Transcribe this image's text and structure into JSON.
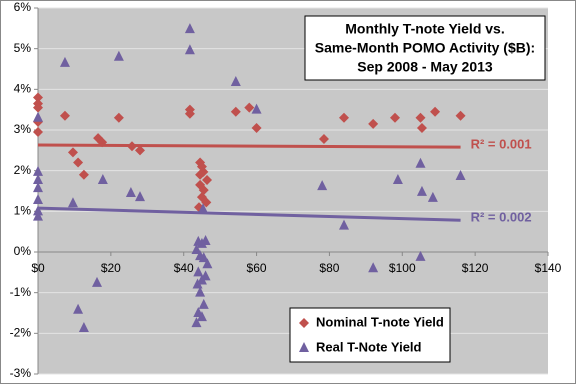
{
  "chart_data": {
    "type": "scatter",
    "title": [
      "Monthly T-note Yield vs.",
      "Same-Month POMO Activity ($B):",
      "Sep 2008 - May 2013"
    ],
    "xlim": [
      0,
      140
    ],
    "ylim": [
      -3,
      6
    ],
    "xticks": [
      {
        "value": 0,
        "label": "$0"
      },
      {
        "value": 20,
        "label": "$20"
      },
      {
        "value": 40,
        "label": "$40"
      },
      {
        "value": 60,
        "label": "$60"
      },
      {
        "value": 80,
        "label": "$80"
      },
      {
        "value": 100,
        "label": "$100"
      },
      {
        "value": 120,
        "label": "$120"
      },
      {
        "value": 140,
        "label": "$140"
      }
    ],
    "yticks": [
      {
        "value": -3,
        "label": "-3%"
      },
      {
        "value": -2,
        "label": "-2%"
      },
      {
        "value": -1,
        "label": "-1%"
      },
      {
        "value": 0,
        "label": "0%"
      },
      {
        "value": 1,
        "label": "1%"
      },
      {
        "value": 2,
        "label": "2%"
      },
      {
        "value": 3,
        "label": "3%"
      },
      {
        "value": 4,
        "label": "4%"
      },
      {
        "value": 5,
        "label": "5%"
      },
      {
        "value": 6,
        "label": "6%"
      }
    ],
    "grid": true,
    "legend": "bottom-right",
    "series": [
      {
        "name": "Nominal T-note Yield",
        "color": "#c0504d",
        "marker": "diamond",
        "x": [
          0,
          0,
          0,
          0,
          0,
          7.4,
          9.6,
          11,
          12.6,
          16.5,
          17.6,
          22.2,
          25.8,
          28,
          41.7,
          41.7,
          44.5,
          45,
          44.5,
          45.4,
          46.4,
          44.5,
          45.5,
          45,
          46.2,
          44.2,
          54.3,
          58,
          60,
          78.5,
          84,
          92,
          98,
          105,
          105.4,
          109,
          116
        ],
        "y": [
          3.8,
          3.65,
          3.55,
          3.2,
          2.95,
          3.35,
          2.45,
          2.2,
          1.9,
          2.8,
          2.7,
          3.3,
          2.6,
          2.5,
          3.5,
          3.4,
          2.2,
          2.1,
          1.9,
          1.97,
          1.77,
          1.65,
          1.52,
          1.35,
          1.22,
          1.1,
          3.45,
          3.55,
          3.05,
          2.78,
          3.3,
          3.15,
          3.3,
          3.3,
          3.05,
          3.45,
          3.35
        ]
      },
      {
        "name": "Real T-Note Yield",
        "color": "#7060a0",
        "marker": "triangle",
        "x": [
          0,
          0,
          0,
          0,
          0,
          0,
          0,
          7.4,
          9.6,
          11,
          12.6,
          16.2,
          17.8,
          22.2,
          25.5,
          28,
          41.7,
          41.7,
          44,
          45,
          46,
          43.5,
          44.5,
          45.5,
          46.5,
          44,
          45,
          43.8,
          46,
          44.5,
          45.5,
          44,
          45,
          43.5,
          45.3,
          54.3,
          60,
          78,
          84,
          92,
          98.8,
          105,
          105,
          105.4,
          108.4,
          116
        ],
        "y": [
          3.3,
          1.97,
          1.77,
          1.57,
          1.28,
          1.0,
          0.87,
          4.65,
          1.2,
          -1.42,
          -1.87,
          -0.76,
          1.77,
          4.8,
          1.45,
          1.35,
          5.48,
          4.96,
          0.25,
          0.2,
          0.27,
          0.05,
          -0.1,
          -0.15,
          -0.3,
          -0.5,
          -0.7,
          -0.8,
          -0.6,
          -1.0,
          -1.3,
          -1.5,
          -1.6,
          -1.75,
          1.05,
          4.18,
          3.5,
          1.62,
          0.65,
          -0.4,
          1.77,
          2.17,
          -0.12,
          1.48,
          1.33,
          1.87
        ]
      }
    ],
    "trendlines": [
      {
        "label": "R² = 0.001",
        "color": "#c0504d",
        "x": [
          0,
          116
        ],
        "y": [
          2.63,
          2.58
        ]
      },
      {
        "label": "R² = 0.002",
        "color": "#7060a0",
        "x": [
          0,
          116
        ],
        "y": [
          1.08,
          0.78
        ]
      }
    ]
  }
}
